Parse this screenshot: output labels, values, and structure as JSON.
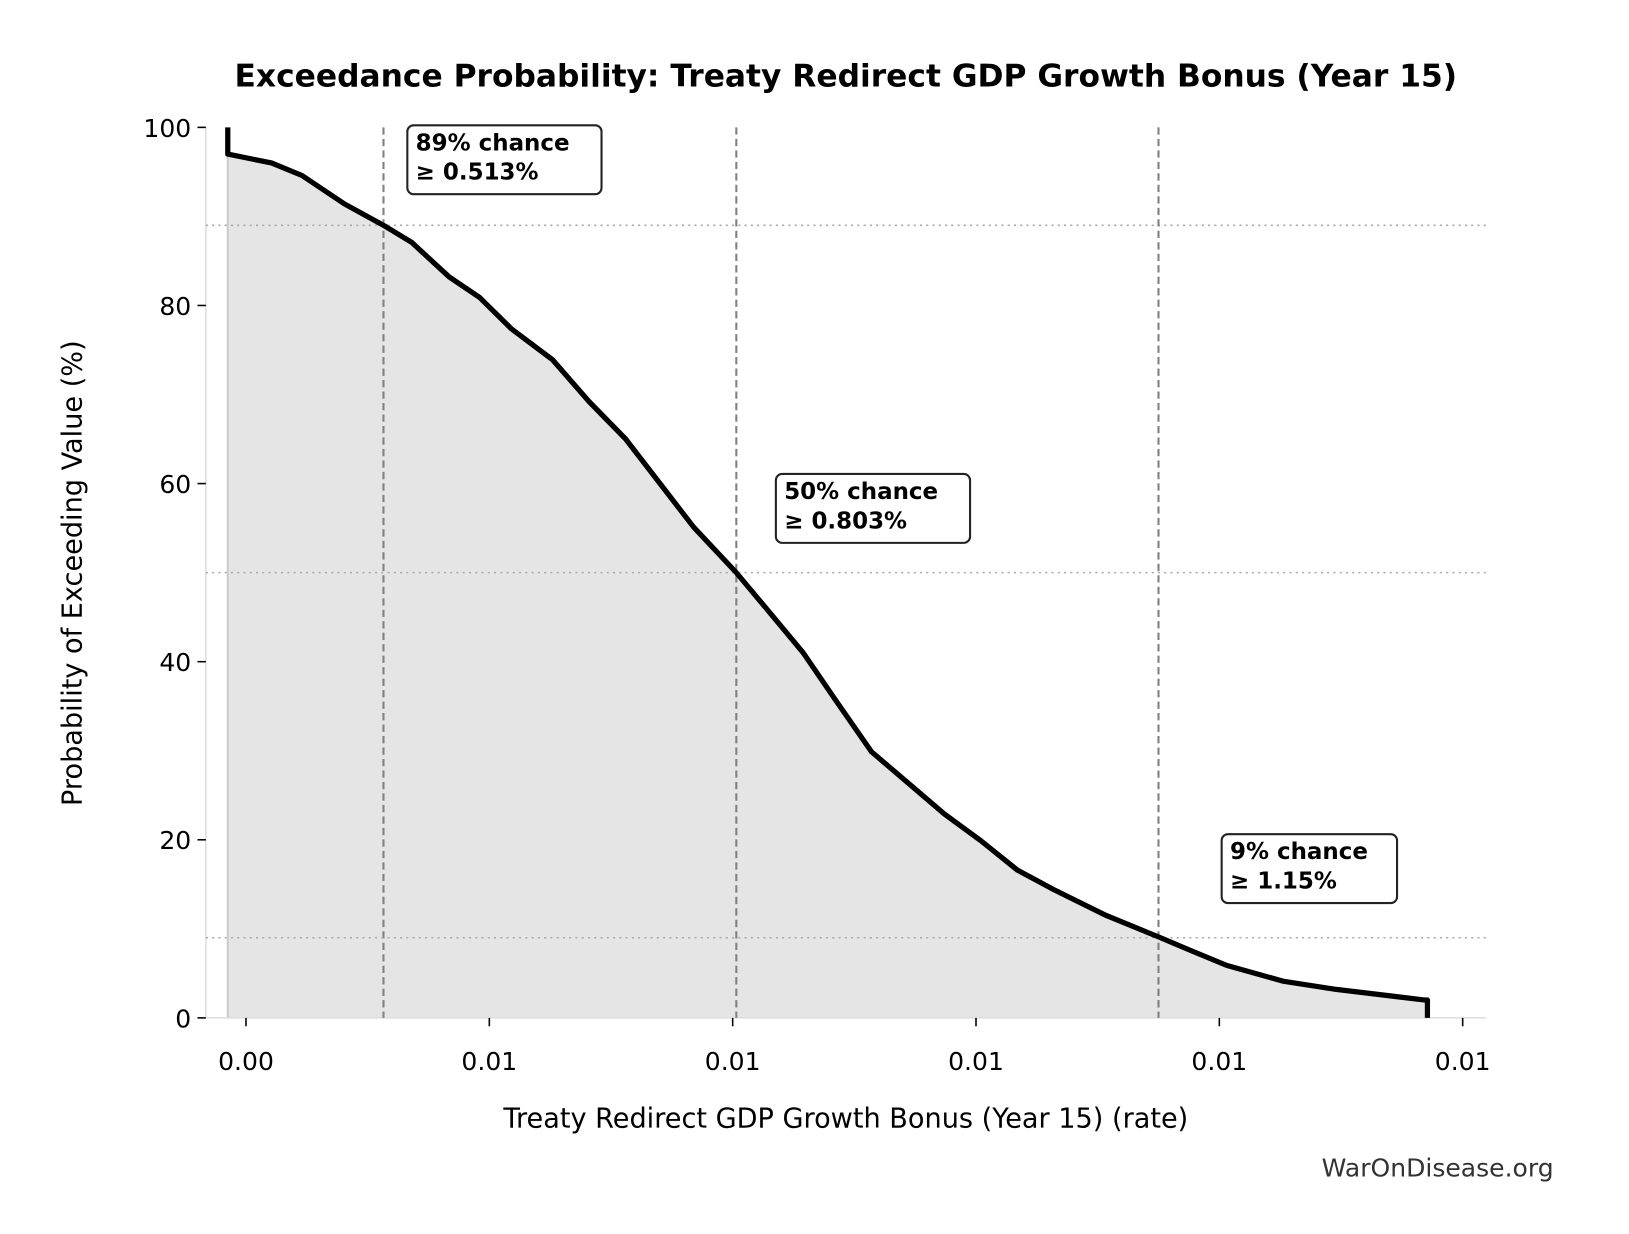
{
  "chart_data": {
    "type": "area",
    "title": "Exceedance Probability: Treaty Redirect GDP Growth Bonus (Year 15)",
    "xlabel": "Treaty Redirect GDP Growth Bonus (Year 15) (rate)",
    "ylabel": "Probability of Exceeding Value (%)",
    "xlim": [
      0.00367,
      0.01419
    ],
    "ylim": [
      0,
      100
    ],
    "x_ticks": [
      0.004,
      0.006,
      0.008,
      0.01,
      0.012,
      0.014
    ],
    "x_tick_labels": [
      "0.00",
      "0.01",
      "0.01",
      "0.01",
      "0.01",
      "0.01"
    ],
    "y_ticks": [
      0,
      20,
      40,
      60,
      80,
      100
    ],
    "y_tick_labels": [
      "0",
      "20",
      "40",
      "60",
      "80",
      "100"
    ],
    "grid": false,
    "series": [
      {
        "x": [
          0.00385,
          0.00385,
          0.00421,
          0.00446,
          0.00481,
          0.00513,
          0.00536,
          0.00567,
          0.00592,
          0.00618,
          0.00652,
          0.00682,
          0.00712,
          0.00738,
          0.00768,
          0.00803,
          0.00833,
          0.00858,
          0.00884,
          0.00914,
          0.00944,
          0.00974,
          0.01004,
          0.01034,
          0.01064,
          0.01107,
          0.0115,
          0.01176,
          0.01206,
          0.01253,
          0.01296,
          0.01369,
          0.01371,
          0.01371
        ],
        "y": [
          100,
          97,
          96,
          94.6,
          91.4,
          89,
          87.1,
          83.2,
          80.9,
          77.4,
          73.9,
          69.2,
          65,
          60.4,
          55.1,
          50,
          45.1,
          41,
          35.8,
          29.9,
          26.4,
          22.9,
          19.9,
          16.6,
          14.4,
          11.5,
          9.1,
          7.6,
          5.9,
          4.1,
          3.2,
          2.0,
          2.0,
          0
        ]
      }
    ],
    "annotations": [
      {
        "x": 0.00513,
        "y": 89,
        "line1": "89% chance",
        "line2": "≥ 0.513%"
      },
      {
        "x": 0.00803,
        "y": 50,
        "line1": "50% chance",
        "line2": "≥ 0.803%"
      },
      {
        "x": 0.0115,
        "y": 9,
        "line1": "9% chance",
        "line2": "≥ 1.15%"
      }
    ],
    "colors": {
      "line": "#000000",
      "fill": "#e5e5e5",
      "reference": "#808080"
    }
  },
  "watermark": "WarOnDisease.org"
}
